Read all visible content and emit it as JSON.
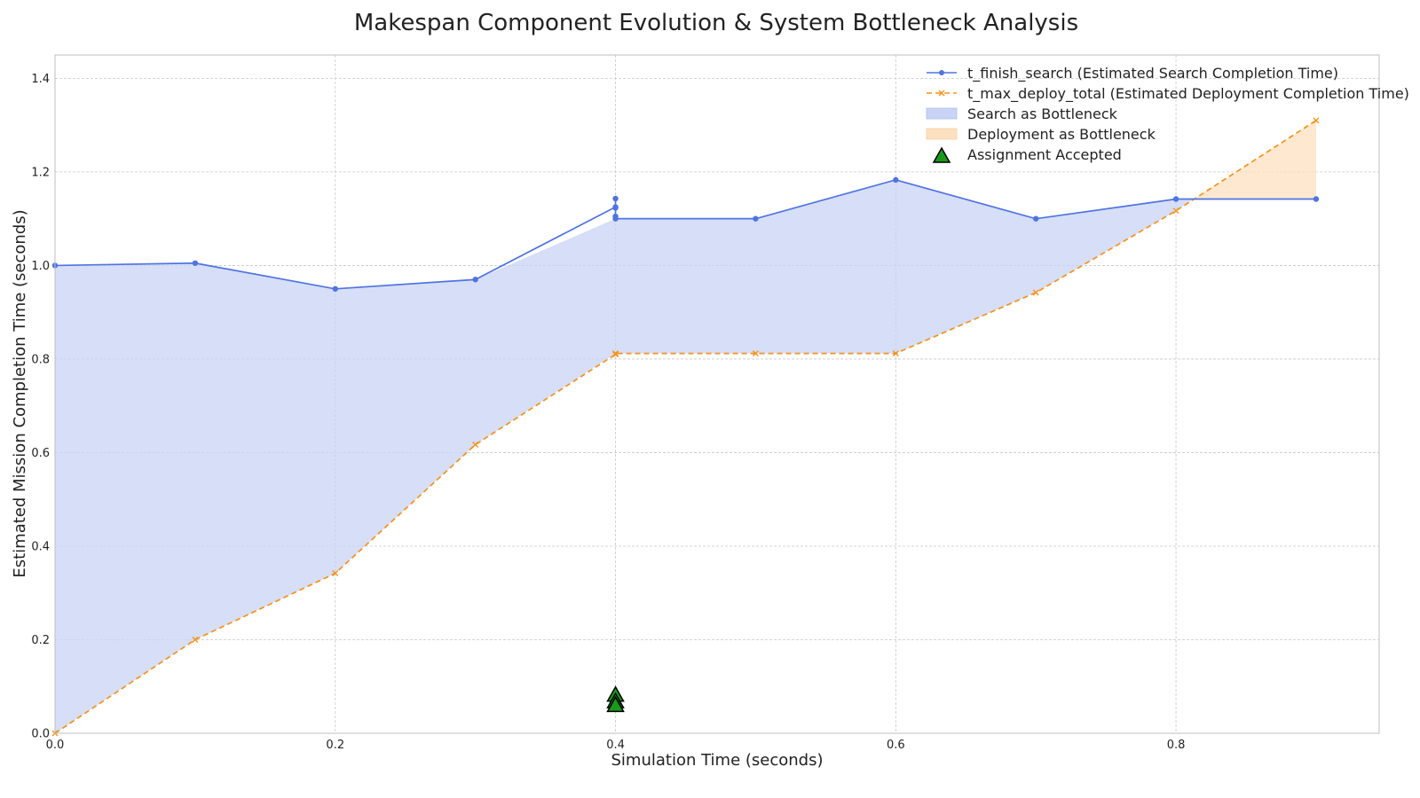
{
  "chart_data": {
    "type": "line",
    "title": "Makespan Component Evolution & System Bottleneck Analysis",
    "xlabel": "Simulation Time (seconds)",
    "ylabel": "Estimated Mission Completion Time (seconds)",
    "xlim": [
      0.0,
      0.945
    ],
    "ylim": [
      0.0,
      1.45
    ],
    "xticks": [
      0.0,
      0.2,
      0.4,
      0.6,
      0.8
    ],
    "yticks": [
      0.0,
      0.2,
      0.4,
      0.6,
      0.8,
      1.0,
      1.2,
      1.4
    ],
    "xtick_labels": [
      "0.0",
      "0.2",
      "0.4",
      "0.6",
      "0.8"
    ],
    "ytick_labels": [
      "0.0",
      "0.2",
      "0.4",
      "0.6",
      "0.8",
      "1.0",
      "1.2",
      "1.4"
    ],
    "grid": true,
    "legend_position": "top-right",
    "series": [
      {
        "name": "t_finish_search (Estimated Search Completion Time)",
        "color": "#4f74e0",
        "style": "solid",
        "marker": "circle",
        "x": [
          0.0,
          0.1,
          0.2,
          0.3,
          0.4,
          0.4,
          0.4,
          0.4,
          0.4,
          0.5,
          0.6,
          0.7,
          0.8,
          0.9
        ],
        "y": [
          1.0,
          1.005,
          0.95,
          0.97,
          1.125,
          1.143,
          1.123,
          1.105,
          1.1,
          1.1,
          1.183,
          1.1,
          1.142,
          1.142
        ]
      },
      {
        "name": "t_max_deploy_total (Estimated Deployment Completion Time)",
        "color": "#f5921b",
        "style": "dashed",
        "marker": "x",
        "x": [
          0.0,
          0.1,
          0.2,
          0.3,
          0.4,
          0.4,
          0.5,
          0.6,
          0.7,
          0.8,
          0.9
        ],
        "y": [
          0.0,
          0.2,
          0.342,
          0.617,
          0.81,
          0.812,
          0.812,
          0.812,
          0.942,
          1.117,
          1.31
        ]
      }
    ],
    "fills": [
      {
        "name": "Search as Bottleneck",
        "color": "#c8d3f5"
      },
      {
        "name": "Deployment as Bottleneck",
        "color": "#fde0bf"
      }
    ],
    "events": {
      "name": "Assignment Accepted",
      "color": "#1a9a1a",
      "marker": "triangle",
      "x": [
        0.4,
        0.4,
        0.4
      ],
      "y": [
        0.082,
        0.068,
        0.06
      ]
    }
  }
}
